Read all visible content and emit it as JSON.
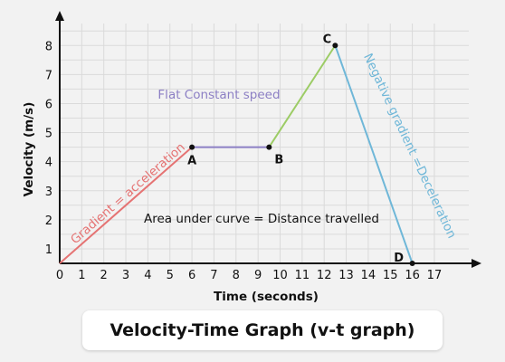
{
  "caption": "Velocity-Time Graph (v-t graph)",
  "chart_data": {
    "type": "line",
    "xlabel": "Time (seconds)",
    "ylabel": "Velocity (m/s)",
    "xlim": [
      0,
      17
    ],
    "ylim": [
      0.5,
      8.5
    ],
    "x_ticks": [
      "0",
      "1",
      "2",
      "3",
      "4",
      "5",
      "6",
      "7",
      "8",
      "9",
      "10",
      "11",
      "12",
      "13",
      "14",
      "15",
      "16",
      "17"
    ],
    "y_ticks": [
      "1",
      "2",
      "3",
      "4",
      "5",
      "6",
      "7",
      "8"
    ],
    "grid": true,
    "points": [
      {
        "label": "",
        "x": 0,
        "y": 0.5
      },
      {
        "label": "A",
        "x": 6,
        "y": 4.5
      },
      {
        "label": "B",
        "x": 9.5,
        "y": 4.5
      },
      {
        "label": "C",
        "x": 12.5,
        "y": 8
      },
      {
        "label": "D",
        "x": 16,
        "y": 0.5
      }
    ],
    "segments": [
      {
        "from": 0,
        "to": 1,
        "color": "#e57373"
      },
      {
        "from": 1,
        "to": 2,
        "color": "#8c7fc4"
      },
      {
        "from": 2,
        "to": 3,
        "color": "#9ccc65"
      },
      {
        "from": 3,
        "to": 4,
        "color": "#6fb7d8"
      }
    ],
    "annotations": {
      "acceleration": "Gradient = acceleration",
      "constant": "Flat Constant speed",
      "deceleration": "Negative gradient =Deceleration",
      "area": "Area under curve = Distance travelled"
    },
    "colors": {
      "acceleration": "#e57373",
      "constant": "#8c7fc4",
      "deceleration": "#6fb7d8",
      "grid": "#dadada",
      "axis": "#111111"
    }
  }
}
